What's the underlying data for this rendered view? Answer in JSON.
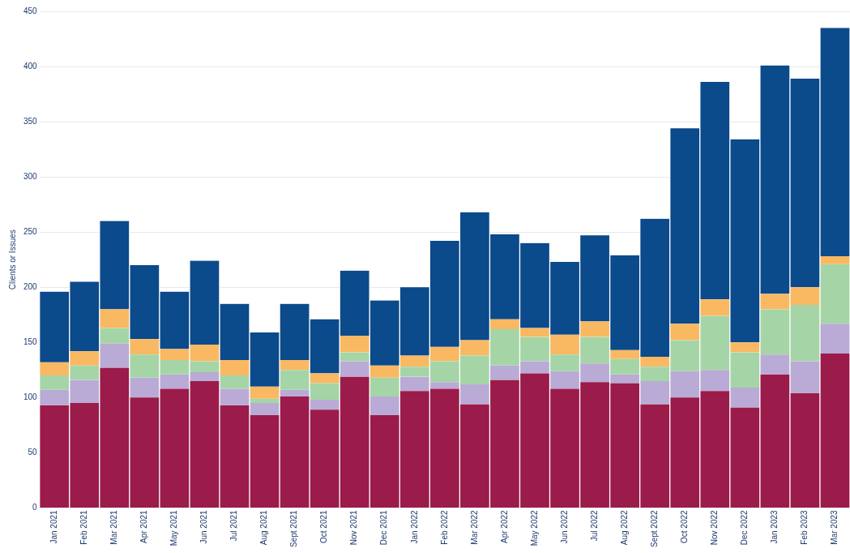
{
  "chart_data": {
    "type": "bar",
    "stacked": true,
    "ylabel": "Clients or Issues",
    "categories": [
      "Jan 2021",
      "Feb 2021",
      "Mar 2021",
      "Apr 2021",
      "May 2021",
      "Jun 2021",
      "Jul 2021",
      "Aug 2021",
      "Sept 2021",
      "Oct 2021",
      "Nov 2021",
      "Dec 2021",
      "Jan 2022",
      "Feb 2022",
      "Mar 2022",
      "Apr 2022",
      "May 2022",
      "Jun 2022",
      "Jul 2022",
      "Aug 2022",
      "Sept 2022",
      "Oct 2022",
      "Nov 2022",
      "Dec 2022",
      "Jan 2023",
      "Feb 2023",
      "Mar 2023"
    ],
    "series": [
      {
        "color": "#9b1b4b",
        "values": [
          93,
          95,
          127,
          100,
          108,
          115,
          93,
          84,
          101,
          89,
          119,
          84,
          106,
          108,
          94,
          116,
          122,
          108,
          114,
          113,
          94,
          100,
          106,
          91,
          121,
          104,
          140
        ]
      },
      {
        "color": "#b9abd5",
        "values": [
          14,
          21,
          22,
          18,
          13,
          8,
          15,
          11,
          6,
          9,
          14,
          17,
          13,
          6,
          18,
          13,
          11,
          16,
          17,
          8,
          21,
          24,
          19,
          18,
          18,
          29,
          27
        ]
      },
      {
        "color": "#a5d5a6",
        "values": [
          13,
          13,
          14,
          21,
          13,
          10,
          12,
          4,
          18,
          15,
          8,
          17,
          9,
          19,
          26,
          33,
          22,
          15,
          24,
          14,
          13,
          28,
          49,
          32,
          41,
          51,
          54
        ]
      },
      {
        "color": "#f9b862",
        "values": [
          12,
          13,
          17,
          14,
          10,
          15,
          14,
          11,
          9,
          9,
          15,
          11,
          10,
          13,
          14,
          9,
          8,
          18,
          14,
          8,
          9,
          15,
          15,
          9,
          14,
          16,
          7
        ]
      },
      {
        "color": "#0b4a8b",
        "values": [
          64,
          63,
          80,
          67,
          52,
          76,
          51,
          49,
          51,
          49,
          59,
          59,
          62,
          96,
          116,
          77,
          77,
          66,
          78,
          86,
          125,
          177,
          197,
          184,
          207,
          189,
          207
        ]
      }
    ],
    "ylim": [
      0,
      450
    ],
    "yticks": [
      0,
      50,
      100,
      150,
      200,
      250,
      300,
      350,
      400,
      450
    ],
    "grid": "y",
    "legend": false
  }
}
